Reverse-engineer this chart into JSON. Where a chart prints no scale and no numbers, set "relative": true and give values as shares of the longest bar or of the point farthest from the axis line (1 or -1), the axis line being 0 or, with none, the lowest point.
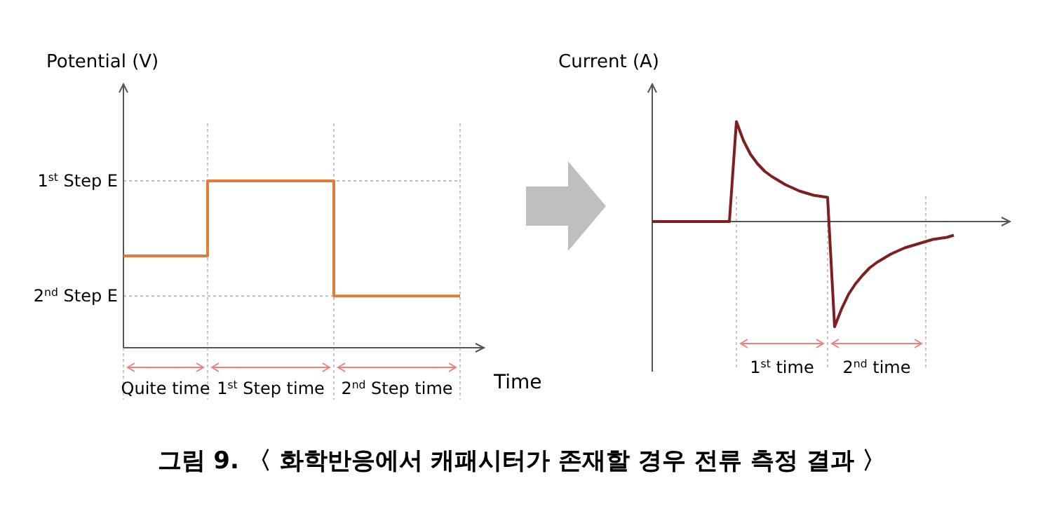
{
  "chart_data": [
    {
      "type": "step",
      "ylabel": "Potential (V)",
      "xlabel": "Time",
      "relative": true,
      "color": "#e07b39",
      "categories": [
        null,
        null,
        null,
        null,
        null,
        null,
        null,
        null,
        null
      ],
      "values": [
        0.55,
        0.55,
        1,
        1,
        1,
        0.31,
        0.31,
        0.31,
        0.31
      ],
      "ref_lines": [
        {
          "axis": "y",
          "value": 1,
          "label": "1$^{st}$ Step  E",
          "color": "#bfbfbf",
          "line_style": "dotted"
        },
        {
          "axis": "y",
          "value": 0.31,
          "label": "2$^{nd}$ Step  E",
          "color": "#bfbfbf",
          "line_style": "dotted"
        }
      ],
      "annotations": [
        "Quite time",
        "1$^{st}$ Step  time",
        "2$^{nd}$ Step  time",
        "그림 9. 〈 화학반응에서 캐패시터가 존재할 경우 전류 측정 결과 〉"
      ]
    },
    {
      "type": "line",
      "ylabel": "Current (A)",
      "relative": true,
      "grid": "x",
      "color": "#7f1f1f",
      "categories": [
        null,
        null,
        null,
        null,
        null,
        null,
        null,
        null,
        null,
        null,
        null,
        null,
        null,
        null,
        null,
        null,
        null,
        null,
        null,
        null,
        null,
        null,
        null,
        null,
        null,
        null,
        null,
        null,
        null,
        null,
        null,
        null,
        null,
        null,
        null,
        null,
        null,
        null,
        null,
        null,
        null,
        null,
        null,
        null
      ],
      "values": [
        0,
        0,
        0,
        0,
        0,
        0,
        0,
        0,
        0,
        0,
        0,
        0,
        0.95,
        0.77,
        0.64,
        0.55,
        0.48,
        0.43,
        0.39,
        0.35,
        0.32,
        0.29,
        0.27,
        0.25,
        0.24,
        0.23,
        -1,
        -0.83,
        -0.69,
        -0.59,
        -0.51,
        -0.44,
        -0.39,
        -0.35,
        -0.31,
        -0.28,
        -0.25,
        -0.23,
        -0.21,
        -0.19,
        -0.17,
        -0.16,
        -0.15,
        -0.13
      ],
      "annotations": [
        "1$^{st}$ time",
        "2$^{nd}$ time"
      ]
    }
  ]
}
